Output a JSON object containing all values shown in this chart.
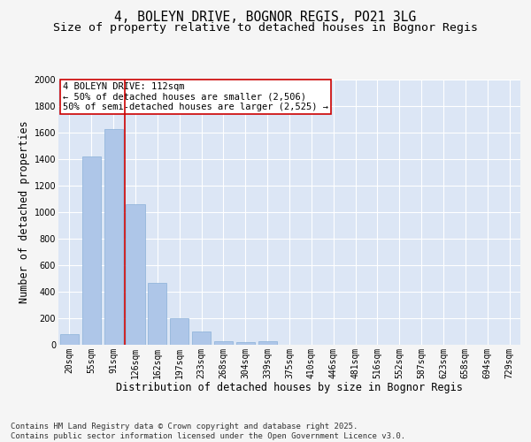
{
  "title_line1": "4, BOLEYN DRIVE, BOGNOR REGIS, PO21 3LG",
  "title_line2": "Size of property relative to detached houses in Bognor Regis",
  "xlabel": "Distribution of detached houses by size in Bognor Regis",
  "ylabel": "Number of detached properties",
  "categories": [
    "20sqm",
    "55sqm",
    "91sqm",
    "126sqm",
    "162sqm",
    "197sqm",
    "233sqm",
    "268sqm",
    "304sqm",
    "339sqm",
    "375sqm",
    "410sqm",
    "446sqm",
    "481sqm",
    "516sqm",
    "552sqm",
    "587sqm",
    "623sqm",
    "658sqm",
    "694sqm",
    "729sqm"
  ],
  "values": [
    80,
    1420,
    1630,
    1060,
    470,
    200,
    100,
    25,
    20,
    30,
    0,
    0,
    0,
    0,
    0,
    0,
    0,
    0,
    0,
    0,
    0
  ],
  "bar_color": "#aec6e8",
  "bar_edge_color": "#8ab0d8",
  "background_color": "#dce6f5",
  "grid_color": "#ffffff",
  "vline_color": "#cc0000",
  "vline_index": 2,
  "annotation_title": "4 BOLEYN DRIVE: 112sqm",
  "annotation_line2": "← 50% of detached houses are smaller (2,506)",
  "annotation_line3": "50% of semi-detached houses are larger (2,525) →",
  "annotation_box_color": "#cc0000",
  "annotation_box_facecolor": "#ffffff",
  "ylim": [
    0,
    2000
  ],
  "yticks": [
    0,
    200,
    400,
    600,
    800,
    1000,
    1200,
    1400,
    1600,
    1800,
    2000
  ],
  "footer_line1": "Contains HM Land Registry data © Crown copyright and database right 2025.",
  "footer_line2": "Contains public sector information licensed under the Open Government Licence v3.0.",
  "title_fontsize": 10.5,
  "subtitle_fontsize": 9.5,
  "axis_label_fontsize": 8.5,
  "tick_fontsize": 7,
  "annotation_fontsize": 7.5,
  "footer_fontsize": 6.5,
  "fig_bg_color": "#f5f5f5"
}
